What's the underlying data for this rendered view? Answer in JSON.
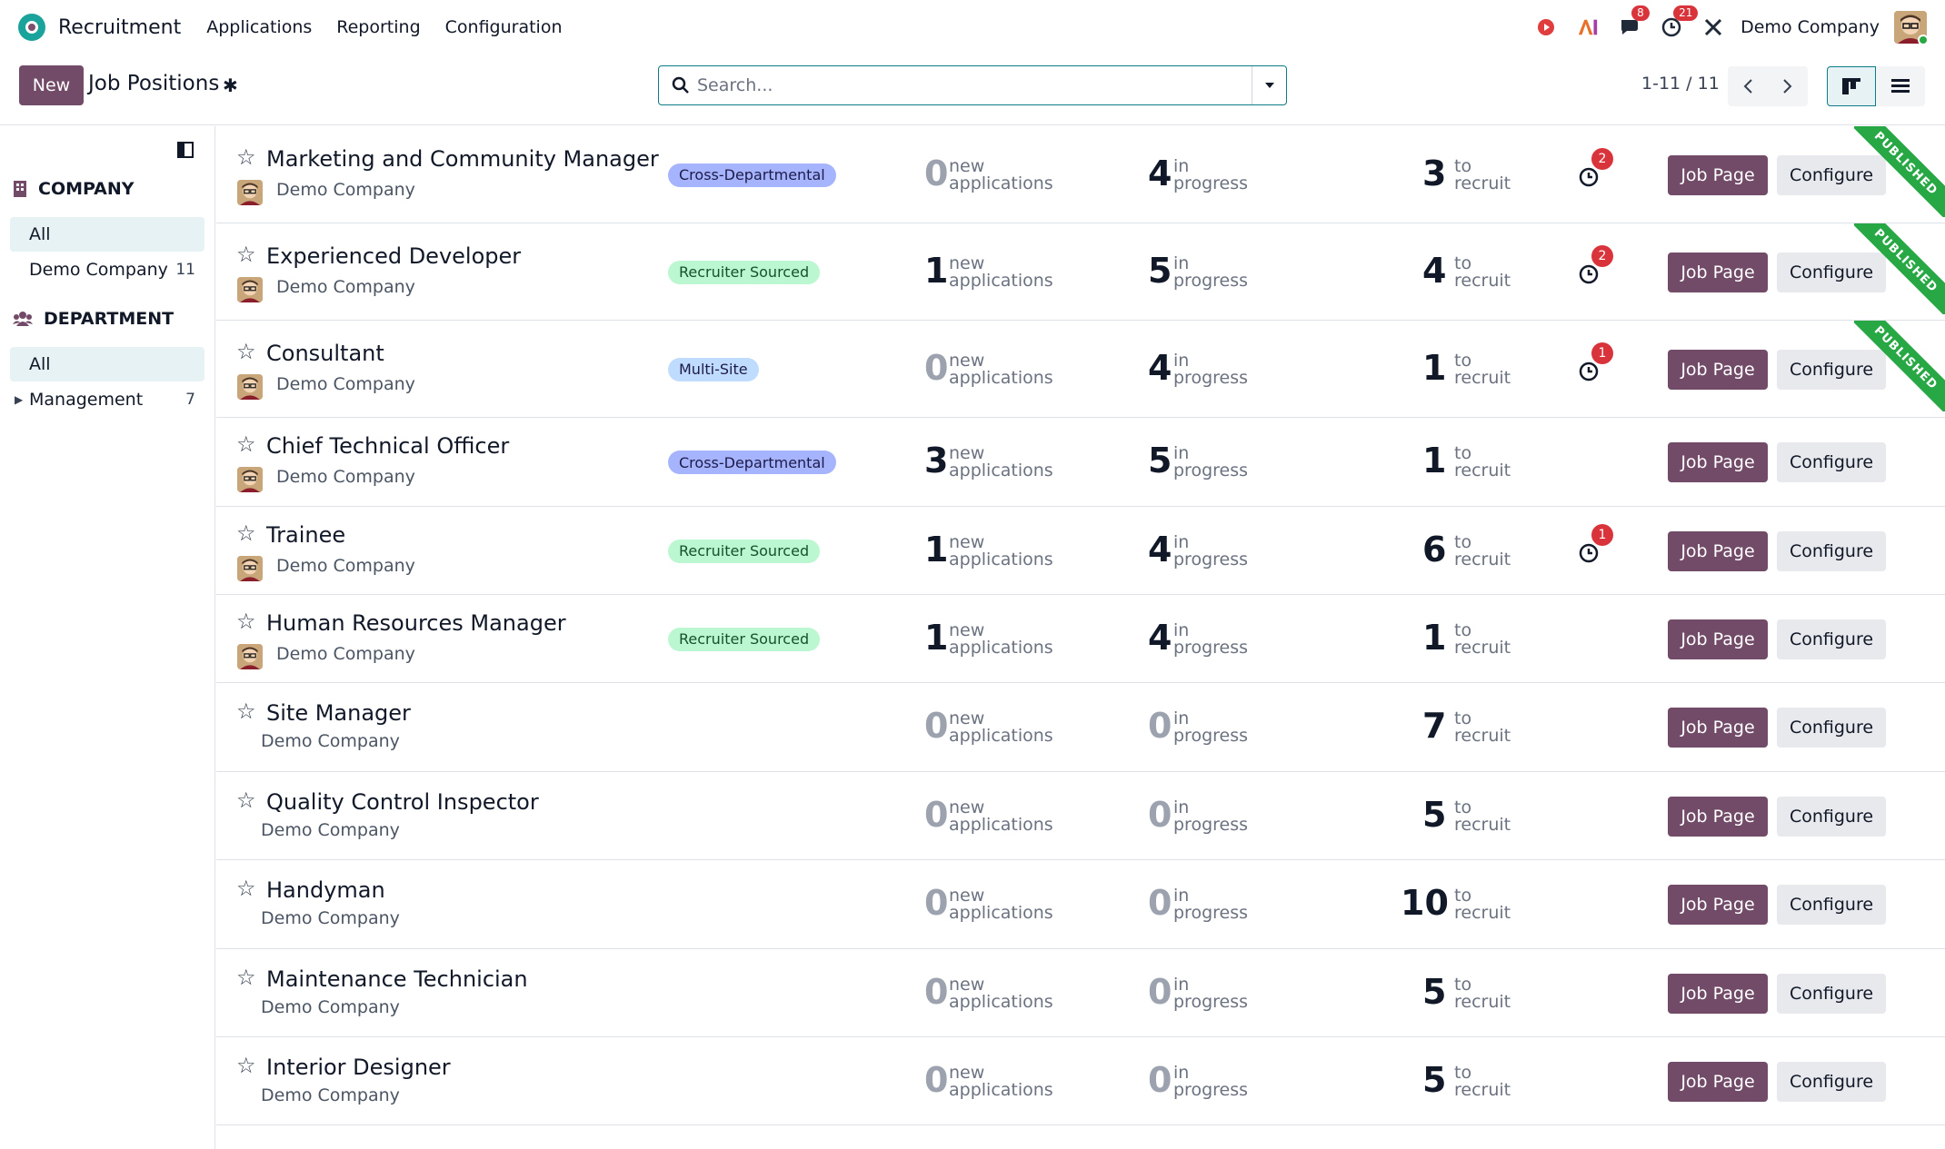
{
  "navbar": {
    "app_name": "Recruitment",
    "menus": [
      "Applications",
      "Reporting",
      "Configuration"
    ],
    "messages_count": "8",
    "activities_count": "21",
    "company": "Demo Company"
  },
  "control": {
    "new_label": "New",
    "title": "Job Positions",
    "search_placeholder": "Search...",
    "pager": "1-11 / 11"
  },
  "sidebar": {
    "company_header": "COMPANY",
    "company_items": [
      {
        "label": "All",
        "count": ""
      },
      {
        "label": "Demo Company",
        "count": "11"
      }
    ],
    "department_header": "DEPARTMENT",
    "department_items": [
      {
        "label": "All",
        "count": ""
      },
      {
        "label": "Management",
        "count": "7"
      }
    ]
  },
  "labels": {
    "new_l1": "new",
    "new_l2": "applications",
    "prog_l1": "in",
    "prog_l2": "progress",
    "rec_l1": "to",
    "rec_l2": "recruit",
    "job_page": "Job Page",
    "configure": "Configure",
    "published": "PUBLISHED"
  },
  "colors": {
    "primary": "#714b67",
    "accent": "#0e7c86",
    "tag_cross_departmental": "#a5b4fc",
    "tag_recruiter_sourced": "#bbf7d0",
    "tag_multi_site": "#bfdbfe",
    "published": "#28a745"
  },
  "jobs": [
    {
      "name": "Marketing and Community Manager",
      "company": "Demo Company",
      "avatar": true,
      "tag": "Cross-Departmental",
      "tag_color": "#a5b4fc",
      "new": "0",
      "in_progress": "4",
      "to_recruit": "3",
      "activities": "2",
      "published": true
    },
    {
      "name": "Experienced Developer",
      "company": "Demo Company",
      "avatar": true,
      "tag": "Recruiter Sourced",
      "tag_color": "#bbf7d0",
      "new": "1",
      "in_progress": "5",
      "to_recruit": "4",
      "activities": "2",
      "published": true
    },
    {
      "name": "Consultant",
      "company": "Demo Company",
      "avatar": true,
      "tag": "Multi-Site",
      "tag_color": "#bfdbfe",
      "new": "0",
      "in_progress": "4",
      "to_recruit": "1",
      "activities": "1",
      "published": true
    },
    {
      "name": "Chief Technical Officer",
      "company": "Demo Company",
      "avatar": true,
      "tag": "Cross-Departmental",
      "tag_color": "#a5b4fc",
      "new": "3",
      "in_progress": "5",
      "to_recruit": "1",
      "activities": "",
      "published": false
    },
    {
      "name": "Trainee",
      "company": "Demo Company",
      "avatar": true,
      "tag": "Recruiter Sourced",
      "tag_color": "#bbf7d0",
      "new": "1",
      "in_progress": "4",
      "to_recruit": "6",
      "activities": "1",
      "published": false
    },
    {
      "name": "Human Resources Manager",
      "company": "Demo Company",
      "avatar": true,
      "tag": "Recruiter Sourced",
      "tag_color": "#bbf7d0",
      "new": "1",
      "in_progress": "4",
      "to_recruit": "1",
      "activities": "",
      "published": false
    },
    {
      "name": "Site Manager",
      "company": "Demo Company",
      "avatar": false,
      "tag": "",
      "tag_color": "",
      "new": "0",
      "in_progress": "0",
      "to_recruit": "7",
      "activities": "",
      "published": false
    },
    {
      "name": "Quality Control Inspector",
      "company": "Demo Company",
      "avatar": false,
      "tag": "",
      "tag_color": "",
      "new": "0",
      "in_progress": "0",
      "to_recruit": "5",
      "activities": "",
      "published": false
    },
    {
      "name": "Handyman",
      "company": "Demo Company",
      "avatar": false,
      "tag": "",
      "tag_color": "",
      "new": "0",
      "in_progress": "0",
      "to_recruit": "10",
      "activities": "",
      "published": false
    },
    {
      "name": "Maintenance Technician",
      "company": "Demo Company",
      "avatar": false,
      "tag": "",
      "tag_color": "",
      "new": "0",
      "in_progress": "0",
      "to_recruit": "5",
      "activities": "",
      "published": false
    },
    {
      "name": "Interior Designer",
      "company": "Demo Company",
      "avatar": false,
      "tag": "",
      "tag_color": "",
      "new": "0",
      "in_progress": "0",
      "to_recruit": "5",
      "activities": "",
      "published": false
    }
  ]
}
